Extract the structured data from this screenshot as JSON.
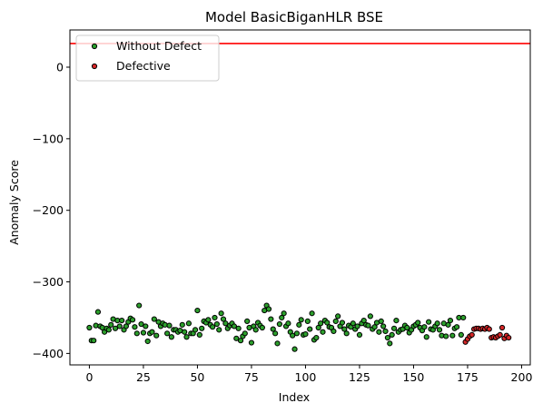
{
  "chart_data": {
    "type": "scatter",
    "title": "Model BasicBiganHLR BSE",
    "xlabel": "Index",
    "ylabel": "Anomaly Score",
    "xlim": [
      -9,
      204
    ],
    "ylim": [
      -416,
      52
    ],
    "xticks": [
      0,
      25,
      50,
      75,
      100,
      125,
      150,
      175,
      200
    ],
    "yticks": [
      0,
      -100,
      -200,
      -300,
      -400
    ],
    "threshold": {
      "y": 33,
      "color": "#ff0000"
    },
    "legend_position": "top-left",
    "grid": false,
    "series": [
      {
        "name": "Without Defect",
        "color": "#2ca02c",
        "x": [
          0,
          1,
          2,
          3,
          4,
          5,
          6,
          7,
          8,
          9,
          10,
          11,
          12,
          13,
          14,
          15,
          16,
          17,
          18,
          19,
          20,
          21,
          22,
          23,
          24,
          25,
          26,
          27,
          28,
          29,
          30,
          31,
          32,
          33,
          34,
          35,
          36,
          37,
          38,
          39,
          40,
          41,
          42,
          43,
          44,
          45,
          46,
          47,
          48,
          49,
          50,
          51,
          52,
          53,
          54,
          55,
          56,
          57,
          58,
          59,
          60,
          61,
          62,
          63,
          64,
          65,
          66,
          67,
          68,
          69,
          70,
          71,
          72,
          73,
          74,
          75,
          76,
          77,
          78,
          79,
          80,
          81,
          82,
          83,
          84,
          85,
          86,
          87,
          88,
          89,
          90,
          91,
          92,
          93,
          94,
          95,
          96,
          97,
          98,
          99,
          100,
          101,
          102,
          103,
          104,
          105,
          106,
          107,
          108,
          109,
          110,
          111,
          112,
          113,
          114,
          115,
          116,
          117,
          118,
          119,
          120,
          121,
          122,
          123,
          124,
          125,
          126,
          127,
          128,
          129,
          130,
          131,
          132,
          133,
          134,
          135,
          136,
          137,
          138,
          139,
          140,
          141,
          142,
          143,
          144,
          145,
          146,
          147,
          148,
          149,
          150,
          151,
          152,
          153,
          154,
          155,
          156,
          157,
          158,
          159,
          160,
          161,
          162,
          163,
          164,
          165,
          166,
          167,
          168,
          169,
          170,
          171,
          172,
          173
        ],
        "values": [
          -364,
          -382,
          -382,
          -361,
          -342,
          -362,
          -364,
          -370,
          -365,
          -367,
          -360,
          -352,
          -365,
          -354,
          -362,
          -354,
          -367,
          -362,
          -356,
          -351,
          -353,
          -363,
          -372,
          -333,
          -359,
          -371,
          -362,
          -383,
          -372,
          -370,
          -352,
          -375,
          -356,
          -362,
          -358,
          -360,
          -372,
          -361,
          -377,
          -367,
          -367,
          -370,
          -368,
          -360,
          -370,
          -377,
          -358,
          -372,
          -372,
          -367,
          -340,
          -374,
          -365,
          -355,
          -357,
          -353,
          -360,
          -363,
          -350,
          -359,
          -367,
          -344,
          -352,
          -358,
          -365,
          -361,
          -358,
          -362,
          -379,
          -365,
          -382,
          -376,
          -372,
          -355,
          -364,
          -385,
          -362,
          -367,
          -357,
          -361,
          -364,
          -340,
          -333,
          -338,
          -352,
          -366,
          -372,
          -386,
          -359,
          -350,
          -344,
          -362,
          -358,
          -370,
          -375,
          -394,
          -372,
          -360,
          -353,
          -374,
          -373,
          -355,
          -366,
          -344,
          -381,
          -378,
          -364,
          -358,
          -370,
          -354,
          -357,
          -363,
          -364,
          -369,
          -355,
          -348,
          -362,
          -357,
          -366,
          -372,
          -361,
          -363,
          -358,
          -366,
          -362,
          -374,
          -358,
          -354,
          -360,
          -361,
          -348,
          -366,
          -363,
          -357,
          -370,
          -355,
          -362,
          -369,
          -378,
          -386,
          -374,
          -365,
          -354,
          -370,
          -367,
          -366,
          -361,
          -364,
          -371,
          -367,
          -362,
          -360,
          -357,
          -364,
          -368,
          -363,
          -377,
          -356,
          -366,
          -367,
          -362,
          -358,
          -367,
          -375,
          -358,
          -376,
          -360,
          -354,
          -375,
          -365,
          -363,
          -350,
          -374,
          -350
        ]
      },
      {
        "name": "Defective",
        "color": "#d62728",
        "x": [
          174,
          175,
          176,
          177,
          178,
          179,
          180,
          181,
          182,
          183,
          184,
          185,
          186,
          187,
          188,
          189,
          190,
          191,
          192,
          193,
          194
        ],
        "values": [
          -384,
          -380,
          -376,
          -374,
          -366,
          -365,
          -365,
          -366,
          -365,
          -366,
          -364,
          -366,
          -378,
          -377,
          -378,
          -376,
          -374,
          -364,
          -379,
          -375,
          -378
        ]
      }
    ]
  }
}
